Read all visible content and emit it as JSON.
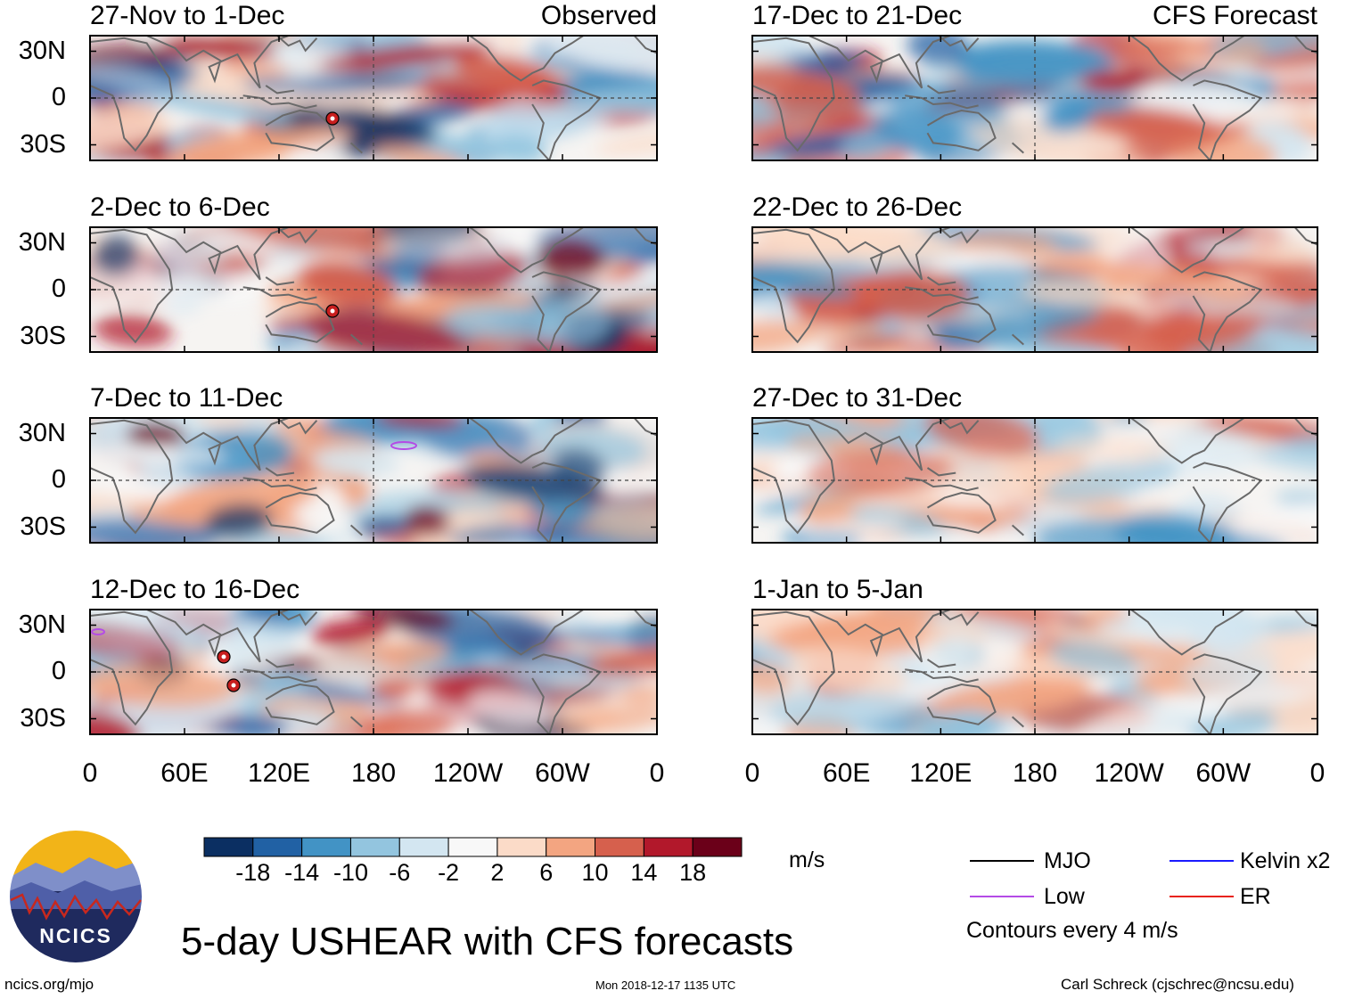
{
  "chart_data": {
    "type": "heatmap",
    "title": "5-day USHEAR with CFS forecasts",
    "variable": "USHEAR",
    "units": "m/s",
    "yticks": [
      "30N",
      "0",
      "30S"
    ],
    "xticks": [
      "0",
      "60E",
      "120E",
      "180",
      "120W",
      "60W",
      "0"
    ],
    "colorbar": {
      "ticks": [
        "-18",
        "-14",
        "-10",
        "-6",
        "-2",
        "2",
        "6",
        "10",
        "14",
        "18"
      ],
      "colors": [
        "#0b2f62",
        "#2161a4",
        "#4293c5",
        "#93c5df",
        "#d3e6f1",
        "#f8f8f8",
        "#fbdbc8",
        "#f3a581",
        "#d6604d",
        "#b2182b",
        "#6b0019"
      ]
    },
    "panels": [
      {
        "period": "27-Nov to 1-Dec",
        "tag": "Observed",
        "column": "left"
      },
      {
        "period": "2-Dec to 6-Dec",
        "tag": "",
        "column": "left"
      },
      {
        "period": "7-Dec to 11-Dec",
        "tag": "",
        "column": "left"
      },
      {
        "period": "12-Dec to 16-Dec",
        "tag": "",
        "column": "left"
      },
      {
        "period": "17-Dec to 21-Dec",
        "tag": "CFS Forecast",
        "column": "right"
      },
      {
        "period": "22-Dec to 26-Dec",
        "tag": "",
        "column": "right"
      },
      {
        "period": "27-Dec to 31-Dec",
        "tag": "",
        "column": "right"
      },
      {
        "period": "1-Jan to 5-Jan",
        "tag": "",
        "column": "right"
      }
    ],
    "legend": [
      {
        "label": "MJO",
        "color": "#000000"
      },
      {
        "label": "Kelvin x2",
        "color": "#1a1aff"
      },
      {
        "label": "Low",
        "color": "#b44be6"
      },
      {
        "label": "ER",
        "color": "#e8231a"
      }
    ],
    "contour_note": "Contours every 4 m/s"
  },
  "logo": {
    "text": "NCICS"
  },
  "footer": {
    "url": "ncics.org/mjo",
    "timestamp": "Mon 2018-12-17 1135 UTC",
    "author": "Carl Schreck (cjschrec@ncsu.edu)"
  }
}
